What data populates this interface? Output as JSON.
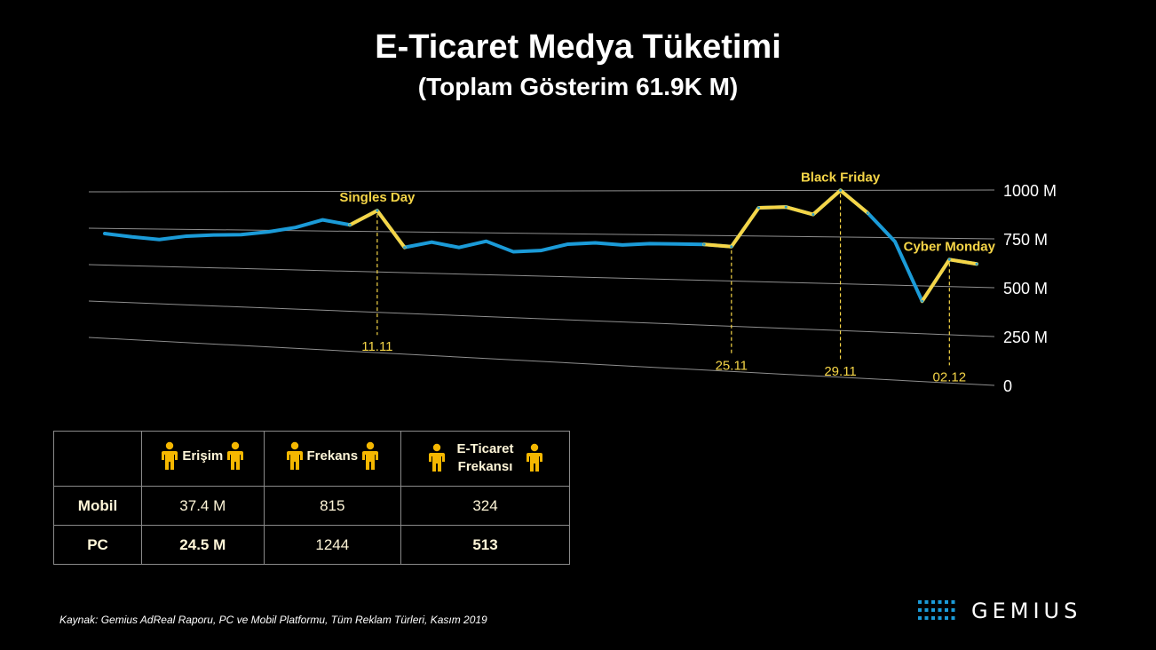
{
  "title": "E-Ticaret Medya Tüketimi",
  "subtitle": "(Toplam Gösterim 61.9K M)",
  "chart_data": {
    "type": "line",
    "y_ticks": [
      "1000 M",
      "750 M",
      "500 M",
      "250 M",
      "0"
    ],
    "ylim": [
      0,
      1000
    ],
    "grid": true,
    "series": [
      {
        "values": [
          715,
          695,
          680,
          705,
          715,
          720,
          740,
          770,
          820,
          790,
          880,
          655,
          690,
          660,
          700,
          640,
          650,
          690,
          700,
          690,
          700,
          700,
          700,
          690,
          905,
          910,
          870,
          1000,
          880,
          730,
          420,
          640,
          620
        ]
      }
    ],
    "annotations": [
      {
        "label": "Singles Day",
        "date": "11.11",
        "index": 10
      },
      {
        "label": "Black Friday",
        "date": "29.11",
        "index": 27
      },
      {
        "label": "Cyber Monday",
        "date": "02.12",
        "index": 31
      }
    ],
    "extra_date_labels": [
      {
        "date": "25.11",
        "index": 23
      }
    ],
    "colors": {
      "line": "#1b9bd8",
      "highlight": "#f5d547",
      "grid": "#bfbfbf",
      "annotation": "#f5d547"
    }
  },
  "table": {
    "headers": [
      "Erişim",
      "Frekans",
      "E-Ticaret Frekansı"
    ],
    "rows": [
      {
        "label": "Mobil",
        "values": [
          "37.4 M",
          "815",
          "324"
        ]
      },
      {
        "label": "PC",
        "values": [
          "24.5 M",
          "1244",
          "513"
        ]
      }
    ],
    "icon_color": "#f5b700"
  },
  "source": "Kaynak: Gemius AdReal Raporu, PC ve Mobil Platformu, Tüm Reklam Türleri, Kasım 2019",
  "logo": {
    "text": "GEMIUS",
    "dot_color": "#1b9bd8"
  }
}
